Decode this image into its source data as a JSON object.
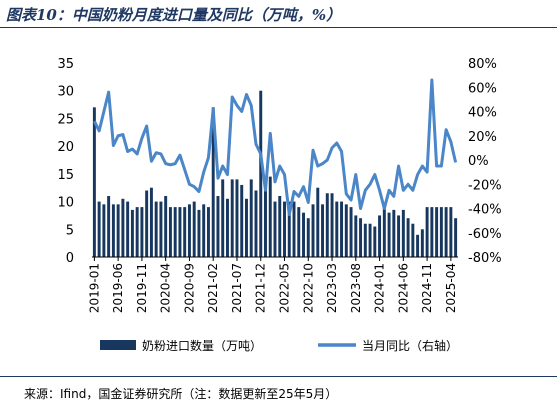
{
  "header": {
    "title": "图表10：中国奶粉月度进口量及同比（万吨，%）"
  },
  "footer": {
    "source": "来源：Ifind，国金证券研究所（注：数据更新至25年5月）"
  },
  "colors": {
    "bar": "#17375e",
    "line": "#4a86c8",
    "rule": "#1f3864"
  },
  "chart_data": {
    "type": "bar+line",
    "title": "",
    "xlabel": "",
    "ylabel": "",
    "ylim": [
      0,
      35
    ],
    "y2lim": [
      -80,
      80
    ],
    "yticks": [
      "0",
      "5",
      "10",
      "15",
      "20",
      "25",
      "30",
      "35"
    ],
    "y2ticks": [
      "-80%",
      "-60%",
      "-40%",
      "-20%",
      "0%",
      "20%",
      "40%",
      "60%",
      "80%"
    ],
    "legend_position": "bottom",
    "x_tick_labels": [
      "2019-01",
      "2019-06",
      "2019-11",
      "2020-04",
      "2020-09",
      "2021-02",
      "2021-07",
      "2021-12",
      "2022-05",
      "2022-10",
      "2023-03",
      "2023-08",
      "2024-01",
      "2024-06",
      "2024-11",
      "2025-04"
    ],
    "categories": [
      "2019-01",
      "2019-02",
      "2019-03",
      "2019-04",
      "2019-05",
      "2019-06",
      "2019-07",
      "2019-08",
      "2019-09",
      "2019-10",
      "2019-11",
      "2019-12",
      "2020-01",
      "2020-02",
      "2020-03",
      "2020-04",
      "2020-05",
      "2020-06",
      "2020-07",
      "2020-08",
      "2020-09",
      "2020-10",
      "2020-11",
      "2020-12",
      "2021-01",
      "2021-02",
      "2021-03",
      "2021-04",
      "2021-05",
      "2021-06",
      "2021-07",
      "2021-08",
      "2021-09",
      "2021-10",
      "2021-11",
      "2021-12",
      "2022-01",
      "2022-02",
      "2022-03",
      "2022-04",
      "2022-05",
      "2022-06",
      "2022-07",
      "2022-08",
      "2022-09",
      "2022-10",
      "2022-11",
      "2022-12",
      "2023-01",
      "2023-02",
      "2023-03",
      "2023-04",
      "2023-05",
      "2023-06",
      "2023-07",
      "2023-08",
      "2023-09",
      "2023-10",
      "2023-11",
      "2023-12",
      "2024-01",
      "2024-02",
      "2024-03",
      "2024-04",
      "2024-05",
      "2024-06",
      "2024-07",
      "2024-08",
      "2024-09",
      "2024-10",
      "2024-11",
      "2024-12",
      "2025-01",
      "2025-02",
      "2025-03",
      "2025-04",
      "2025-05"
    ],
    "series": [
      {
        "name": "奶粉进口数量（万吨）",
        "type": "bar",
        "axis": "left",
        "values": [
          27,
          10,
          9.5,
          11,
          9.5,
          9.5,
          10.5,
          10,
          8.5,
          9,
          9,
          12,
          12.5,
          10,
          10,
          11,
          9,
          9,
          9,
          9,
          9.5,
          10,
          8.5,
          9.5,
          9,
          27,
          11,
          14,
          10.5,
          14,
          14,
          13,
          10.5,
          14,
          12,
          30,
          13,
          14.5,
          10,
          11,
          10,
          10,
          10,
          9,
          8,
          7,
          9.5,
          12.5,
          9.5,
          11.5,
          11.5,
          10,
          10,
          9.5,
          9,
          7.5,
          7,
          6,
          6,
          5.5,
          7.5,
          9,
          8,
          8.5,
          7.5,
          8.5,
          7,
          6,
          4,
          5,
          9,
          9,
          9,
          9,
          9,
          9,
          7
        ]
      },
      {
        "name": "当月同比（右轴）",
        "type": "line",
        "axis": "right",
        "values": [
          32,
          24,
          40,
          56,
          12,
          20,
          21,
          7,
          9,
          5,
          18,
          28,
          -1,
          6,
          5,
          -3,
          -4,
          -3,
          4,
          -8,
          -20,
          -22,
          -26,
          -10,
          2,
          42,
          -15,
          -5,
          -12,
          52,
          45,
          40,
          54,
          45,
          13,
          5,
          -25,
          22,
          -18,
          -5,
          -12,
          -45,
          -26,
          -30,
          -22,
          -35,
          8,
          -5,
          -3,
          0,
          10,
          14,
          7,
          -28,
          -33,
          -12,
          -40,
          -25,
          -20,
          -12,
          -25,
          -40,
          -25,
          -30,
          -5,
          -25,
          -20,
          -25,
          -12,
          -5,
          -10,
          66,
          -5,
          -5,
          25,
          15,
          -2
        ]
      }
    ]
  }
}
